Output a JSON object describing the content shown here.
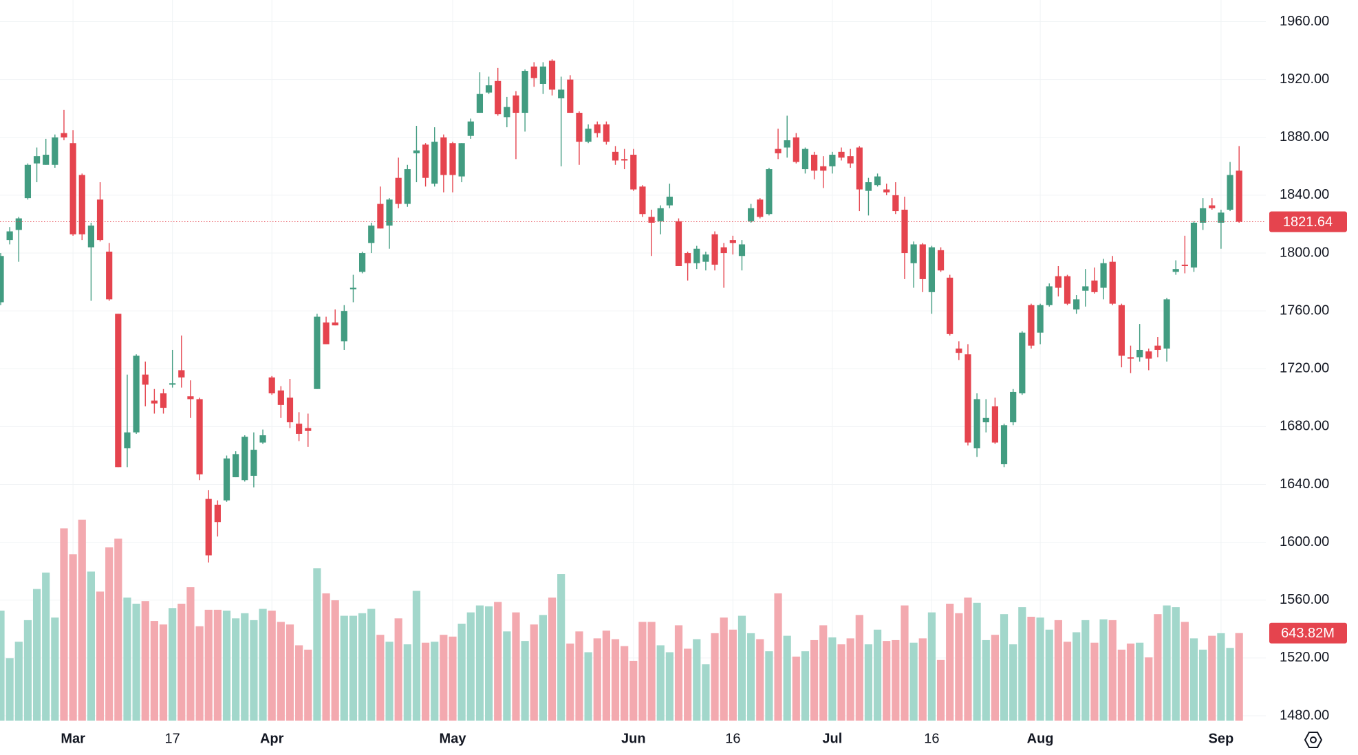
{
  "chart_data": {
    "type": "candlestick",
    "categories": [
      null,
      null,
      null,
      null,
      null,
      null,
      null,
      null,
      "Mar",
      null,
      null,
      null,
      null,
      null,
      null,
      null,
      null,
      null,
      null,
      "17",
      null,
      null,
      null,
      null,
      null,
      null,
      null,
      null,
      null,
      null,
      "Apr",
      null,
      null,
      null,
      null,
      null,
      null,
      null,
      null,
      null,
      null,
      null,
      null,
      null,
      null,
      null,
      null,
      null,
      null,
      null,
      "May",
      null,
      null,
      null,
      null,
      null,
      null,
      null,
      null,
      null,
      null,
      null,
      null,
      null,
      null,
      null,
      null,
      null,
      null,
      null,
      "Jun",
      null,
      null,
      null,
      null,
      null,
      null,
      null,
      null,
      null,
      null,
      "16",
      null,
      null,
      null,
      null,
      null,
      null,
      null,
      null,
      null,
      null,
      "Jul",
      null,
      null,
      null,
      null,
      null,
      null,
      null,
      null,
      null,
      null,
      "16",
      null,
      null,
      null,
      null,
      null,
      null,
      null,
      null,
      null,
      null,
      null,
      "Aug",
      null,
      null,
      null,
      null,
      null,
      null,
      null,
      null,
      null,
      null,
      null,
      null,
      null,
      null,
      null,
      null,
      null,
      null,
      null,
      "Sep",
      null,
      null
    ],
    "open": [
      1766,
      1809,
      1816,
      1838,
      1862,
      1861,
      1861,
      1883,
      1876,
      1854,
      1804,
      1837,
      1801,
      1758,
      1665,
      1676,
      1716,
      1698,
      1703,
      1709,
      1719,
      1701,
      1699,
      1630,
      1626,
      1629,
      1645,
      1643,
      1646,
      1669,
      1714,
      1705,
      1700,
      1682,
      1679,
      1706,
      1752,
      1752,
      1739,
      1775,
      1787,
      1807,
      1834,
      1819,
      1852,
      1834,
      1869,
      1875,
      1848,
      1880,
      1876,
      1853,
      1881,
      1897,
      1911,
      1919,
      1894,
      1909,
      1897,
      1929,
      1917,
      1933,
      1907,
      1920,
      1897,
      1877,
      1889,
      1889,
      1870,
      1865,
      1868,
      1846,
      1825,
      1822,
      1833,
      1822,
      1800,
      1793,
      1794,
      1813,
      1804,
      1809,
      1798,
      1822,
      1837,
      1827,
      1872,
      1873,
      1880,
      1858,
      1868,
      1860,
      1860,
      1870,
      1867,
      1873,
      1843,
      1847,
      1844,
      1840,
      1830,
      1793,
      1806,
      1773,
      1802,
      1783,
      1734,
      1730,
      1665,
      1683,
      1694,
      1654,
      1683,
      1703,
      1764,
      1745,
      1764,
      1784,
      1784,
      1761,
      1774,
      1781,
      1776,
      1794,
      1764,
      1728,
      1728,
      1732,
      1736,
      1734,
      1787,
      1792,
      1790,
      1821,
      1833,
      1821,
      1830,
      1857
    ],
    "high": [
      1800,
      1818,
      1825,
      1862,
      1873,
      1879,
      1882,
      1899,
      1885,
      1855,
      1821,
      1849,
      1807,
      1758,
      1716,
      1730,
      1725,
      1706,
      1706,
      1733,
      1743,
      1712,
      1700,
      1636,
      1629,
      1660,
      1663,
      1674,
      1676,
      1678,
      1715,
      1708,
      1713,
      1690,
      1689,
      1758,
      1756,
      1761,
      1764,
      1785,
      1801,
      1821,
      1846,
      1838,
      1866,
      1861,
      1888,
      1876,
      1887,
      1882,
      1877,
      1876,
      1893,
      1925,
      1922,
      1928,
      1908,
      1912,
      1927,
      1932,
      1932,
      1934,
      1922,
      1923,
      1898,
      1889,
      1891,
      1891,
      1874,
      1872,
      1872,
      1847,
      1830,
      1833,
      1848,
      1824,
      1801,
      1805,
      1801,
      1815,
      1807,
      1812,
      1809,
      1834,
      1838,
      1859,
      1886,
      1895,
      1883,
      1873,
      1870,
      1867,
      1870,
      1873,
      1872,
      1874,
      1852,
      1855,
      1848,
      1849,
      1839,
      1808,
      1807,
      1805,
      1804,
      1785,
      1739,
      1737,
      1703,
      1699,
      1700,
      1682,
      1706,
      1746,
      1765,
      1765,
      1779,
      1791,
      1785,
      1771,
      1789,
      1790,
      1796,
      1798,
      1765,
      1736,
      1751,
      1734,
      1742,
      1769,
      1795,
      1812,
      1822,
      1838,
      1838,
      1830,
      1863,
      1874
    ],
    "low": [
      1764,
      1806,
      1794,
      1837,
      1849,
      1861,
      1859,
      1878,
      1812,
      1809,
      1767,
      1808,
      1767,
      1652,
      1652,
      1675,
      1694,
      1689,
      1689,
      1707,
      1707,
      1686,
      1643,
      1586,
      1604,
      1628,
      1645,
      1642,
      1638,
      1668,
      1702,
      1686,
      1679,
      1670,
      1666,
      1706,
      1737,
      1750,
      1733,
      1766,
      1786,
      1800,
      1817,
      1803,
      1831,
      1832,
      1849,
      1846,
      1846,
      1842,
      1842,
      1849,
      1879,
      1897,
      1910,
      1895,
      1887,
      1865,
      1884,
      1915,
      1910,
      1909,
      1860,
      1897,
      1861,
      1876,
      1880,
      1875,
      1861,
      1858,
      1843,
      1825,
      1798,
      1813,
      1831,
      1791,
      1781,
      1789,
      1788,
      1788,
      1776,
      1799,
      1788,
      1821,
      1824,
      1826,
      1865,
      1866,
      1862,
      1855,
      1851,
      1845,
      1855,
      1864,
      1859,
      1829,
      1826,
      1846,
      1840,
      1827,
      1782,
      1776,
      1773,
      1758,
      1787,
      1743,
      1726,
      1667,
      1659,
      1676,
      1668,
      1652,
      1681,
      1702,
      1734,
      1737,
      1763,
      1770,
      1764,
      1758,
      1763,
      1772,
      1768,
      1764,
      1721,
      1717,
      1725,
      1719,
      1728,
      1725,
      1785,
      1786,
      1787,
      1816,
      1830,
      1803,
      1829,
      1821
    ],
    "close": [
      1798,
      1815,
      1824,
      1861,
      1867,
      1868,
      1880,
      1880,
      1813,
      1813,
      1819,
      1809,
      1768,
      1652,
      1676,
      1729,
      1709,
      1696,
      1693,
      1710,
      1714,
      1699,
      1647,
      1591,
      1614,
      1658,
      1661,
      1673,
      1664,
      1674,
      1703,
      1695,
      1683,
      1675,
      1677,
      1756,
      1737,
      1750,
      1760,
      1776,
      1800,
      1819,
      1817,
      1837,
      1834,
      1858,
      1871,
      1852,
      1877,
      1854,
      1854,
      1876,
      1891,
      1910,
      1916,
      1896,
      1901,
      1897,
      1926,
      1921,
      1929,
      1913,
      1913,
      1897,
      1877,
      1886,
      1883,
      1877,
      1864,
      1864,
      1844,
      1827,
      1821,
      1831,
      1839,
      1791,
      1793,
      1803,
      1799,
      1792,
      1800,
      1807,
      1806,
      1831,
      1825,
      1858,
      1869,
      1878,
      1863,
      1872,
      1857,
      1857,
      1868,
      1866,
      1862,
      1844,
      1849,
      1853,
      1842,
      1829,
      1800,
      1806,
      1782,
      1804,
      1788,
      1744,
      1731,
      1669,
      1699,
      1686,
      1669,
      1681,
      1704,
      1745,
      1736,
      1764,
      1777,
      1776,
      1765,
      1768,
      1777,
      1773,
      1793,
      1765,
      1729,
      1727,
      1733,
      1727,
      1733,
      1768,
      1789,
      1791,
      1821,
      1831,
      1831,
      1828,
      1854,
      1821.64
    ],
    "volume": [
      809,
      459,
      580,
      739,
      968,
      1089,
      758,
      1414,
      1223,
      1478,
      1096,
      949,
      1274,
      1338,
      905,
      860,
      879,
      733,
      707,
      828,
      860,
      981,
      694,
      815,
      815,
      809,
      752,
      790,
      739,
      822,
      809,
      726,
      707,
      554,
      522,
      1121,
      936,
      885,
      771,
      771,
      790,
      822,
      631,
      580,
      752,
      561,
      955,
      573,
      580,
      631,
      618,
      713,
      796,
      847,
      841,
      873,
      656,
      796,
      586,
      707,
      777,
      905,
      1077,
      567,
      656,
      503,
      605,
      662,
      599,
      548,
      440,
      726,
      726,
      554,
      503,
      701,
      529,
      599,
      414,
      643,
      758,
      669,
      771,
      643,
      599,
      510,
      936,
      624,
      471,
      510,
      592,
      701,
      612,
      561,
      605,
      777,
      561,
      669,
      586,
      592,
      847,
      573,
      605,
      796,
      446,
      860,
      790,
      905,
      866,
      592,
      631,
      783,
      561,
      834,
      764,
      758,
      669,
      739,
      580,
      650,
      739,
      573,
      745,
      739,
      522,
      567,
      573,
      465,
      783,
      847,
      834,
      726,
      605,
      522,
      624,
      643,
      535,
      643.82
    ],
    "volume_label": "643.82M",
    "ylim": [
      1476.7,
      1975
    ],
    "yticks": [
      {
        "value": 1480,
        "label": "1480.00"
      },
      {
        "value": 1520,
        "label": "1520.00"
      },
      {
        "value": 1560,
        "label": "1560.00"
      },
      {
        "value": 1600,
        "label": "1600.00"
      },
      {
        "value": 1640,
        "label": "1640.00"
      },
      {
        "value": 1680,
        "label": "1680.00"
      },
      {
        "value": 1720,
        "label": "1720.00"
      },
      {
        "value": 1760,
        "label": "1760.00"
      },
      {
        "value": 1800,
        "label": "1800.00"
      },
      {
        "value": 1840,
        "label": "1840.00"
      },
      {
        "value": 1880,
        "label": "1880.00"
      },
      {
        "value": 1920,
        "label": "1920.00"
      },
      {
        "value": 1960,
        "label": "1960.00"
      }
    ],
    "volume_ylim": [
      0,
      5300
    ],
    "grid": true,
    "up_color": "#429c81",
    "down_color": "#e5444e",
    "up_volume_color": "#a2d7cb",
    "down_volume_color": "#f3a9af"
  }
}
